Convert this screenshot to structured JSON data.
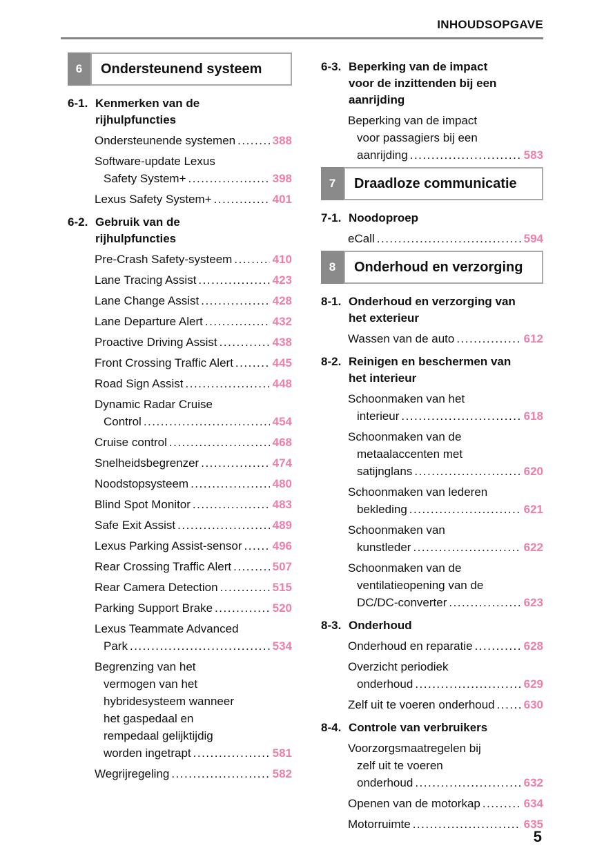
{
  "header": {
    "title": "INHOUDSOPGAVE"
  },
  "footer": {
    "page_number": "5"
  },
  "colors": {
    "accent_pink": "#ed7fad",
    "tile_gray": "#8a8a8a",
    "rule_gray": "#848484",
    "box_border": "#a8a8a8",
    "text": "#111111"
  },
  "columns": [
    {
      "side": "left",
      "blocks": [
        {
          "type": "chapter",
          "number": "6",
          "title": "Ondersteunend systeem"
        },
        {
          "type": "section",
          "label": "6-1.",
          "title_lines": [
            "Kenmerken van de",
            "rijhulpfuncties"
          ]
        },
        {
          "type": "entry",
          "lines": [
            "Ondersteunende systemen"
          ],
          "page": "388"
        },
        {
          "type": "entry",
          "lines": [
            "Software-update Lexus",
            "Safety System+"
          ],
          "page": "398"
        },
        {
          "type": "entry",
          "lines": [
            "Lexus Safety System+"
          ],
          "page": "401"
        },
        {
          "type": "section",
          "label": "6-2.",
          "title_lines": [
            "Gebruik van de",
            "rijhulpfuncties"
          ]
        },
        {
          "type": "entry",
          "lines": [
            "Pre-Crash Safety-systeem"
          ],
          "page": "410"
        },
        {
          "type": "entry",
          "lines": [
            "Lane Tracing Assist"
          ],
          "page": "423"
        },
        {
          "type": "entry",
          "lines": [
            "Lane Change Assist"
          ],
          "page": "428"
        },
        {
          "type": "entry",
          "lines": [
            "Lane Departure Alert"
          ],
          "page": "432"
        },
        {
          "type": "entry",
          "lines": [
            "Proactive Driving Assist"
          ],
          "page": "438"
        },
        {
          "type": "entry",
          "lines": [
            "Front Crossing Traffic Alert"
          ],
          "page": "445"
        },
        {
          "type": "entry",
          "lines": [
            "Road Sign Assist"
          ],
          "page": "448"
        },
        {
          "type": "entry",
          "lines": [
            "Dynamic Radar Cruise",
            "Control"
          ],
          "page": "454"
        },
        {
          "type": "entry",
          "lines": [
            "Cruise control"
          ],
          "page": "468"
        },
        {
          "type": "entry",
          "lines": [
            "Snelheidsbegrenzer"
          ],
          "page": "474"
        },
        {
          "type": "entry",
          "lines": [
            "Noodstopsysteem"
          ],
          "page": "480"
        },
        {
          "type": "entry",
          "lines": [
            "Blind Spot Monitor"
          ],
          "page": "483"
        },
        {
          "type": "entry",
          "lines": [
            "Safe Exit Assist"
          ],
          "page": "489"
        },
        {
          "type": "entry",
          "lines": [
            "Lexus Parking Assist-sensor"
          ],
          "page": "496"
        },
        {
          "type": "entry",
          "lines": [
            "Rear Crossing Traffic Alert"
          ],
          "page": "507"
        },
        {
          "type": "entry",
          "lines": [
            "Rear Camera Detection"
          ],
          "page": "515"
        },
        {
          "type": "entry",
          "lines": [
            "Parking Support Brake"
          ],
          "page": "520"
        },
        {
          "type": "entry",
          "lines": [
            "Lexus Teammate Advanced",
            "Park"
          ],
          "page": "534"
        },
        {
          "type": "entry",
          "lines": [
            "Begrenzing van het",
            "vermogen van het",
            "hybridesysteem wanneer",
            "het gaspedaal en",
            "rempedaal gelijktijdig",
            "worden ingetrapt"
          ],
          "page": "581"
        },
        {
          "type": "entry",
          "lines": [
            "Wegrijregeling"
          ],
          "page": "582"
        }
      ]
    },
    {
      "side": "right",
      "blocks": [
        {
          "type": "section",
          "label": "6-3.",
          "title_lines": [
            "Beperking van de impact",
            "voor de inzittenden bij een",
            "aanrijding"
          ]
        },
        {
          "type": "entry",
          "lines": [
            "Beperking van de impact",
            "voor passagiers bij een",
            "aanrijding"
          ],
          "page": "583"
        },
        {
          "type": "chapter",
          "number": "7",
          "title": "Draadloze communicatie"
        },
        {
          "type": "section",
          "label": "7-1.",
          "title_lines": [
            "Noodoproep"
          ]
        },
        {
          "type": "entry",
          "lines": [
            "eCall"
          ],
          "page": "594"
        },
        {
          "type": "chapter",
          "number": "8",
          "title": "Onderhoud en verzorging"
        },
        {
          "type": "section",
          "label": "8-1.",
          "title_lines": [
            "Onderhoud en verzorging van",
            "het exterieur"
          ]
        },
        {
          "type": "entry",
          "lines": [
            "Wassen van de auto"
          ],
          "page": "612"
        },
        {
          "type": "section",
          "label": "8-2.",
          "title_lines": [
            "Reinigen en beschermen van",
            "het interieur"
          ]
        },
        {
          "type": "entry",
          "lines": [
            "Schoonmaken van het",
            "interieur"
          ],
          "page": "618"
        },
        {
          "type": "entry",
          "lines": [
            "Schoonmaken van de",
            "metaalaccenten met",
            "satijnglans"
          ],
          "page": "620"
        },
        {
          "type": "entry",
          "lines": [
            "Schoonmaken van lederen",
            "bekleding"
          ],
          "page": "621"
        },
        {
          "type": "entry",
          "lines": [
            "Schoonmaken van",
            "kunstleder"
          ],
          "page": "622"
        },
        {
          "type": "entry",
          "lines": [
            "Schoonmaken van de",
            "ventilatieopening van de",
            "DC/DC-converter"
          ],
          "page": "623"
        },
        {
          "type": "section",
          "label": "8-3.",
          "title_lines": [
            "Onderhoud"
          ]
        },
        {
          "type": "entry",
          "lines": [
            "Onderhoud en reparatie"
          ],
          "page": "628"
        },
        {
          "type": "entry",
          "lines": [
            "Overzicht periodiek",
            "onderhoud"
          ],
          "page": "629"
        },
        {
          "type": "entry",
          "lines": [
            "Zelf uit te voeren onderhoud"
          ],
          "page": "630"
        },
        {
          "type": "section",
          "label": "8-4.",
          "title_lines": [
            "Controle van verbruikers"
          ]
        },
        {
          "type": "entry",
          "lines": [
            "Voorzorgsmaatregelen bij",
            "zelf uit te voeren",
            "onderhoud"
          ],
          "page": "632"
        },
        {
          "type": "entry",
          "lines": [
            "Openen van de motorkap"
          ],
          "page": "634"
        },
        {
          "type": "entry",
          "lines": [
            "Motorruimte"
          ],
          "page": "635"
        }
      ]
    }
  ]
}
